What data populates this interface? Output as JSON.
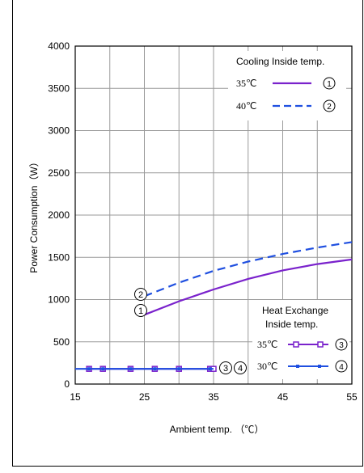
{
  "chart_data": {
    "type": "line",
    "xlabel": "Ambient temp. （℃）",
    "ylabel": "Power Consumption（W）",
    "xlim": [
      15,
      55
    ],
    "ylim": [
      0,
      4000
    ],
    "xticks": [
      "15",
      "25",
      "35",
      "45",
      "55"
    ],
    "yticks": [
      "0",
      "500",
      "1000",
      "1500",
      "2000",
      "2500",
      "3000",
      "3500",
      "4000"
    ],
    "grid": true,
    "legend_cooling": {
      "title": "Cooling Inside temp.",
      "entries": [
        {
          "label": "35℃",
          "marker": "1"
        },
        {
          "label": "40℃",
          "marker": "2"
        }
      ]
    },
    "legend_heat": {
      "title_line1": "Heat Exchange",
      "title_line2": "Inside temp.",
      "entries": [
        {
          "label": "35℃",
          "marker": "3"
        },
        {
          "label": "30℃",
          "marker": "4"
        }
      ]
    },
    "series": [
      {
        "marker": "1",
        "color": "#7a22cc",
        "style": "solid",
        "square_markers": false,
        "x": [
          25,
          30,
          35,
          40,
          45,
          50,
          55
        ],
        "values": [
          820,
          980,
          1120,
          1245,
          1345,
          1420,
          1475
        ]
      },
      {
        "marker": "2",
        "color": "#1f4fe0",
        "style": "dashed",
        "square_markers": false,
        "x": [
          25,
          30,
          35,
          40,
          45,
          50,
          55
        ],
        "values": [
          1040,
          1200,
          1340,
          1450,
          1540,
          1615,
          1680
        ]
      },
      {
        "marker": "3",
        "color": "#7a22cc",
        "style": "solid",
        "square_markers": true,
        "x": [
          17,
          19,
          23,
          26.5,
          30,
          34.5,
          35
        ],
        "values": [
          180,
          180,
          180,
          180,
          180,
          180,
          180
        ]
      },
      {
        "marker": "4",
        "color": "#1f4fe0",
        "style": "solid",
        "square_markers": false,
        "x": [
          15,
          35
        ],
        "values": [
          180,
          180
        ]
      }
    ]
  }
}
